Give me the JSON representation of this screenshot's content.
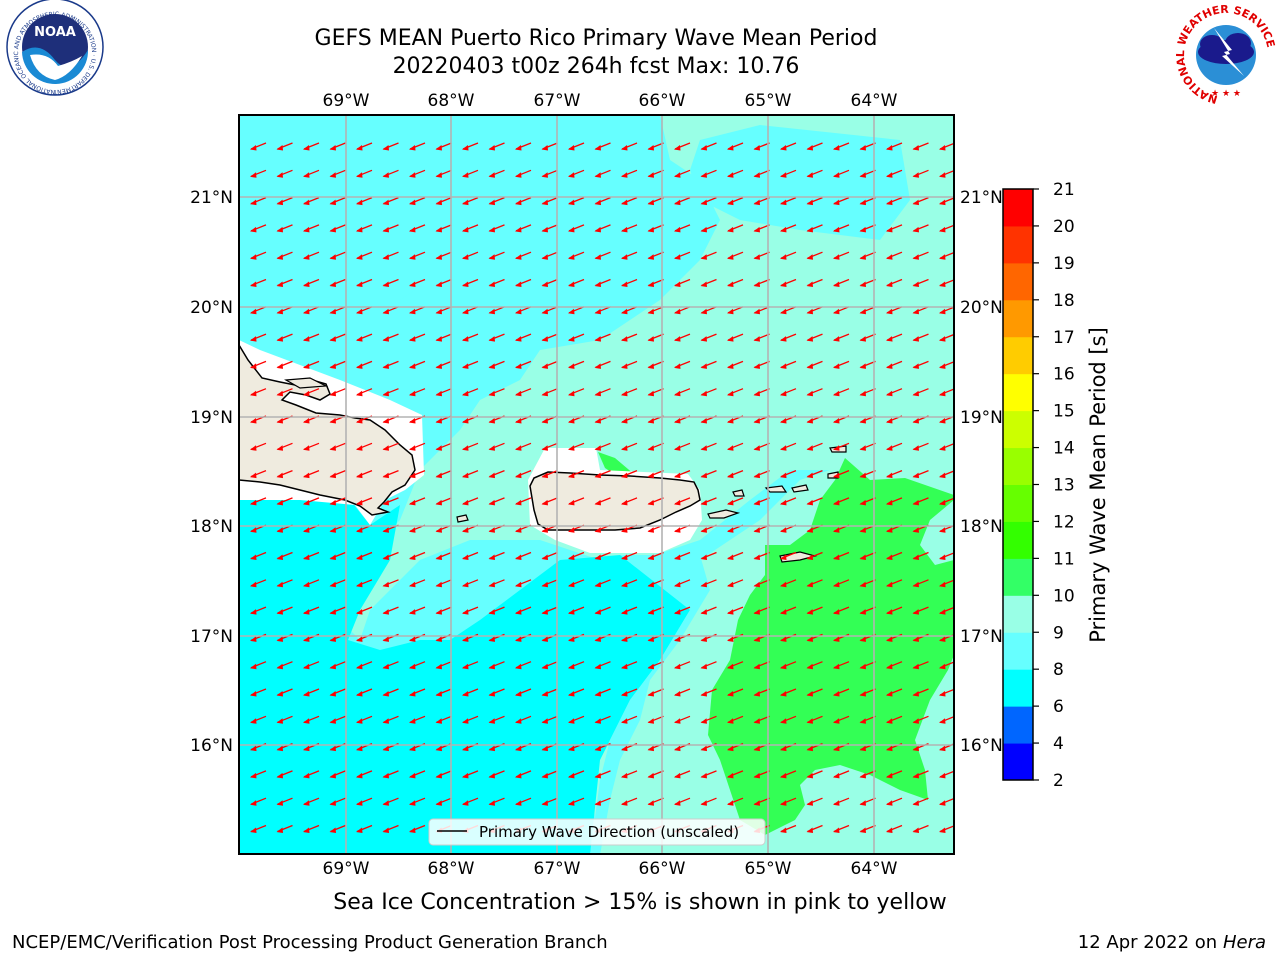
{
  "header": {
    "title_line1": "GEFS MEAN Puerto Rico Primary Wave Mean Period",
    "title_line2": "20220403 t00z 264h fcst   Max: 10.76"
  },
  "logos": {
    "left": {
      "icon": "noaa-logo",
      "text": "NOAA",
      "ring_text": "NATIONAL OCEANIC AND ATMOSPHERIC ADMINISTRATION · U.S. DEPARTMENT OF COMMERCE"
    },
    "right": {
      "icon": "nws-logo",
      "ring_text": "NATIONAL WEATHER SERVICE"
    }
  },
  "map": {
    "lon_labels": [
      "69°W",
      "68°W",
      "67°W",
      "66°W",
      "65°W",
      "64°W"
    ],
    "lat_labels": [
      "21°N",
      "20°N",
      "19°N",
      "18°N",
      "17°N",
      "16°N"
    ],
    "legend": "Primary Wave Direction (unscaled)",
    "wave_direction": "toward south-west",
    "colors": {
      "land": "#efebdf",
      "arrow": "#ff0000"
    }
  },
  "colorbar": {
    "title": "Primary Wave Mean Period [s]",
    "ticks": [
      "2",
      "4",
      "6",
      "8",
      "9",
      "10",
      "11",
      "12",
      "13",
      "14",
      "15",
      "16",
      "17",
      "18",
      "19",
      "20",
      "21"
    ],
    "colors": [
      "#0000ff",
      "#0066ff",
      "#00ffff",
      "#66ffff",
      "#99ffe6",
      "#33ff66",
      "#33ff00",
      "#66ff00",
      "#99ff00",
      "#ccff00",
      "#ffff00",
      "#ffcc00",
      "#ff9900",
      "#ff6600",
      "#ff3300",
      "#ff0000"
    ]
  },
  "note": "Sea Ice Concentration > 15% is shown in pink to yellow",
  "footer": {
    "left": "NCEP/EMC/Verification Post Processing Product Generation Branch",
    "date": "12 Apr 2022 on ",
    "machine": "Hera"
  }
}
